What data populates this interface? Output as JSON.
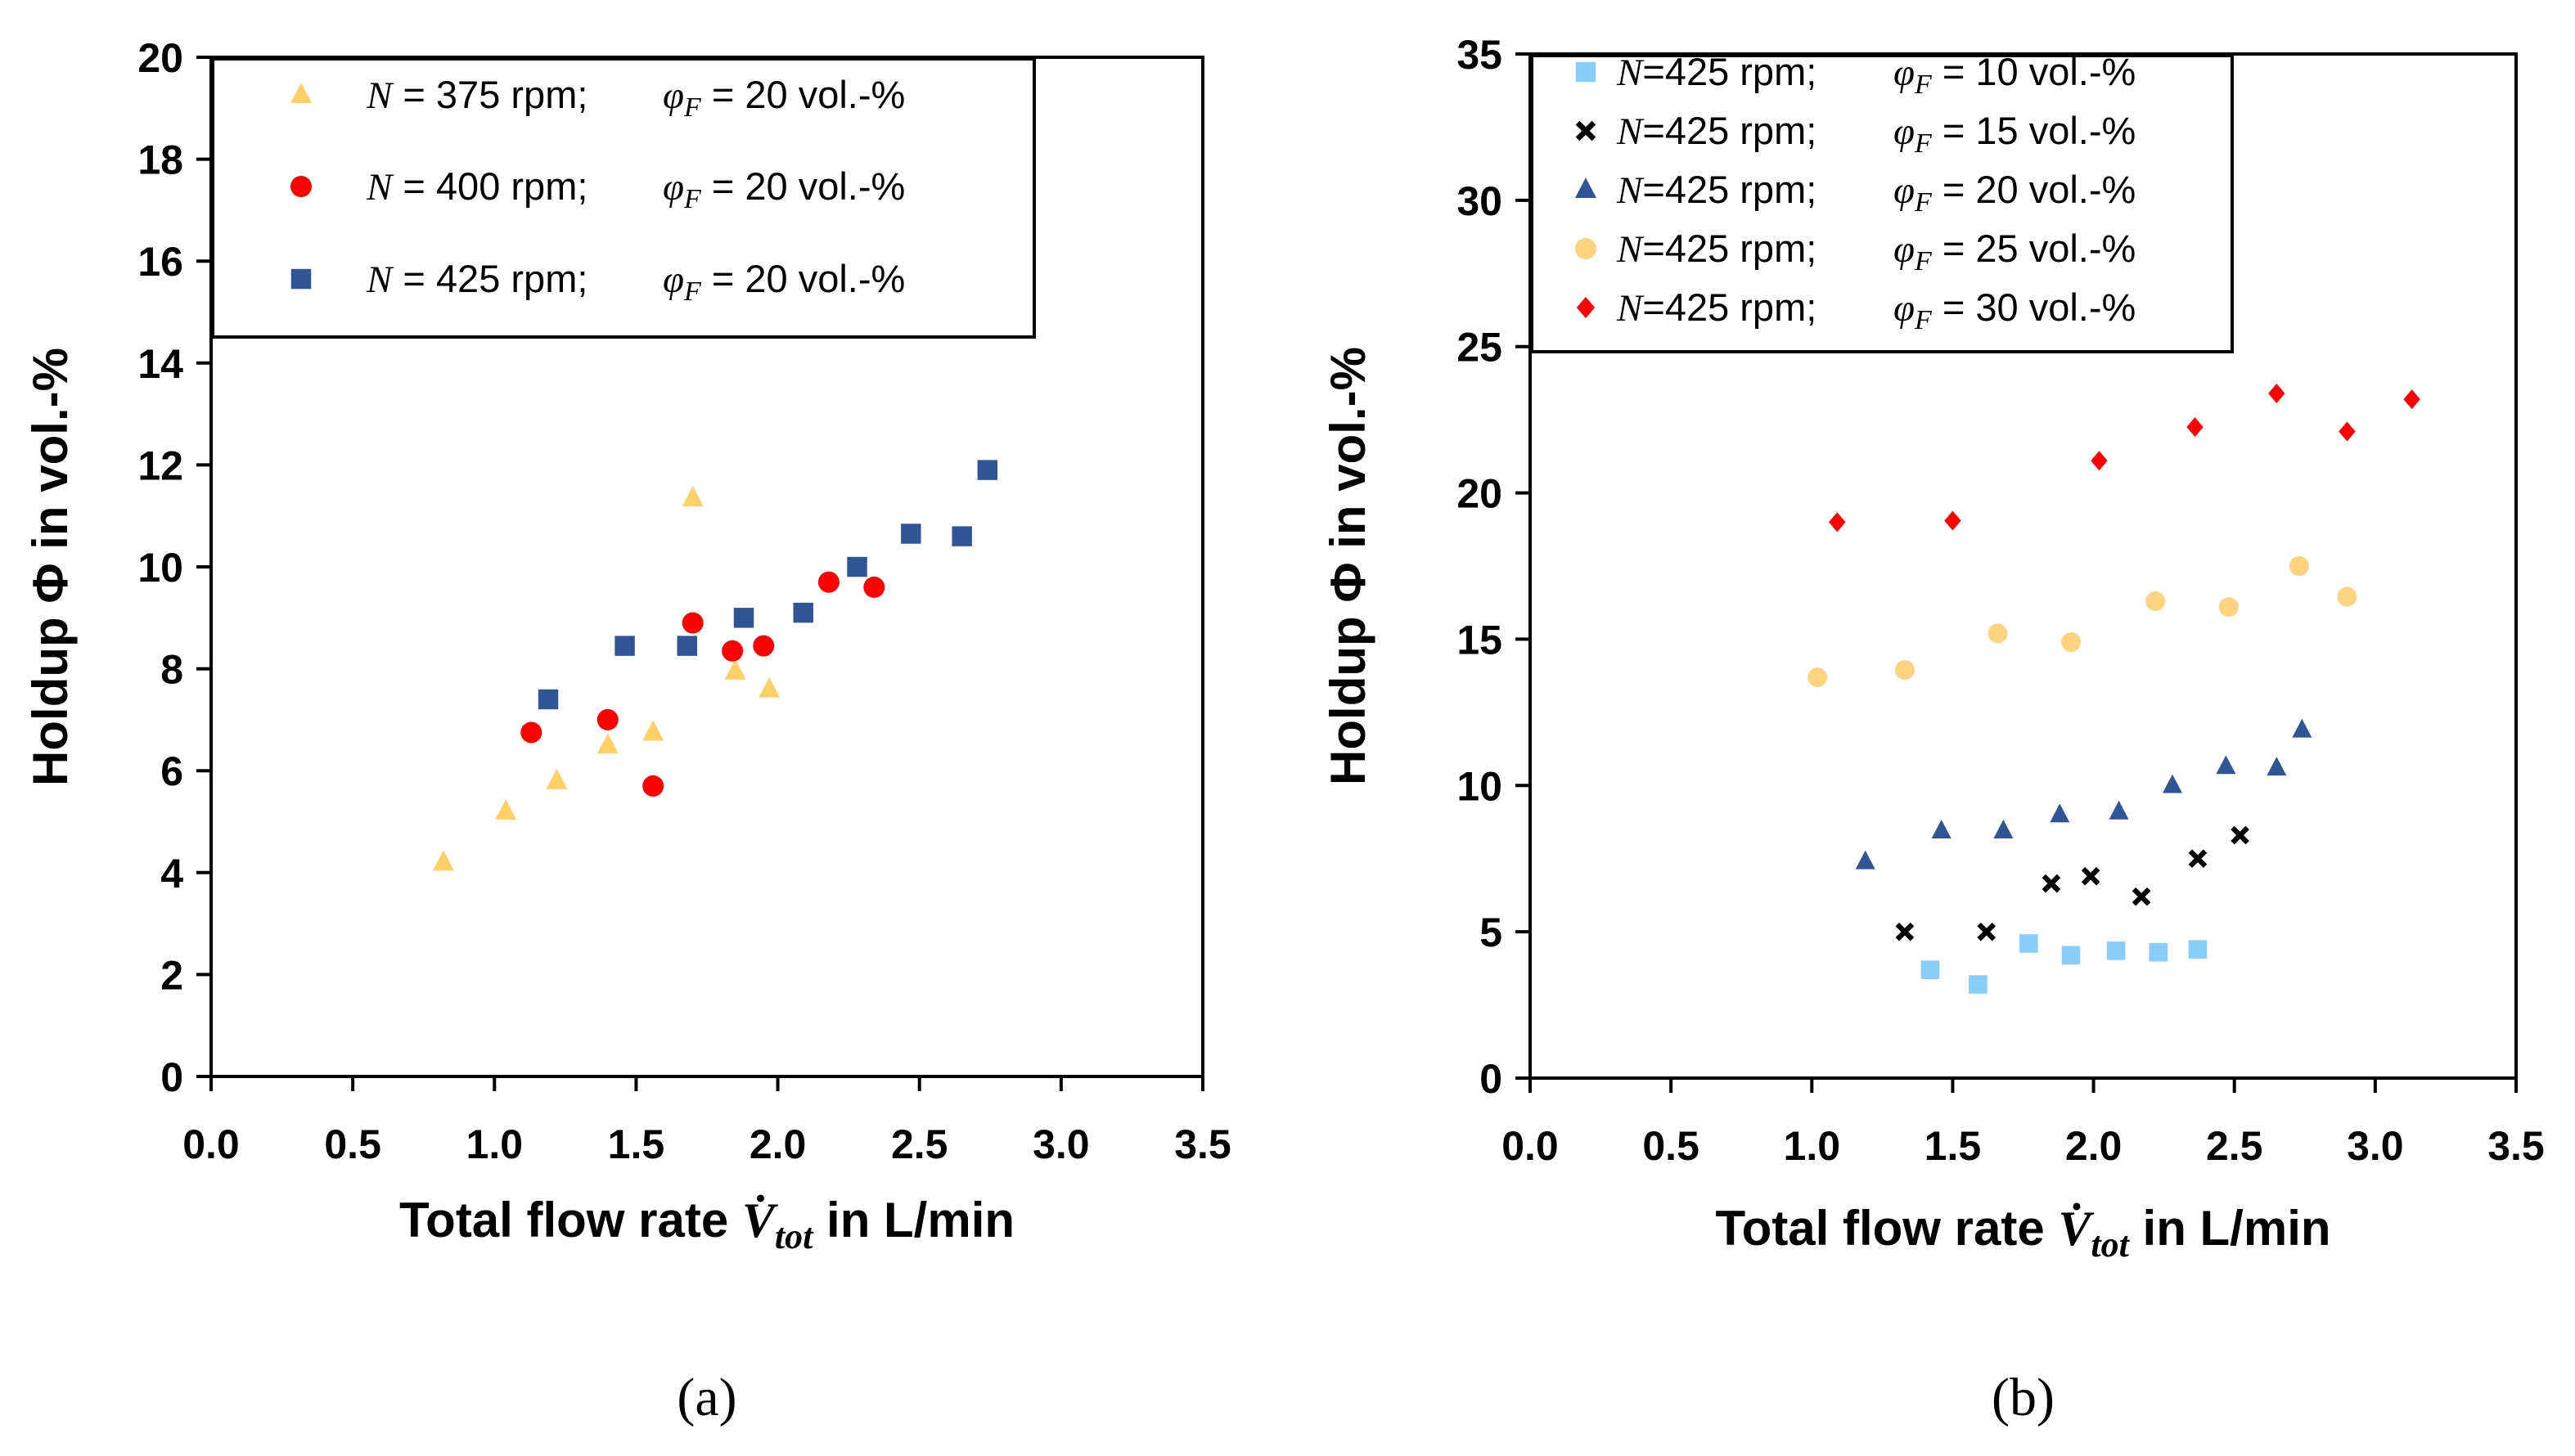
{
  "charts": [
    {
      "id": "a",
      "type": "scatter",
      "panel_label": "(a)",
      "ylabel": "Holdup Φ in vol.-%",
      "xlabel_prefix": "Total flow rate",
      "xlabel_symbol": "V̇",
      "xlabel_sub": "tot",
      "xlabel_suffix": "in L/min",
      "xlim": [
        0,
        3.5
      ],
      "ylim": [
        0,
        20
      ],
      "xticks": [
        "0.0",
        "0.5",
        "1.0",
        "1.5",
        "2.0",
        "2.5",
        "3.0",
        "3.5"
      ],
      "yticks": [
        "0",
        "2",
        "4",
        "6",
        "8",
        "10",
        "12",
        "14",
        "16",
        "18",
        "20"
      ],
      "legend": {
        "placement": "top-left",
        "entries": [
          {
            "n_symbol": "N",
            "n_text": " = 375 rpm;",
            "phi_symbol": "φ",
            "phi_sub": "F",
            "phi_text": " = 20 vol.-%"
          },
          {
            "n_symbol": "N",
            "n_text": " = 400 rpm;",
            "phi_symbol": "φ",
            "phi_sub": "F",
            "phi_text": " = 20 vol.-%"
          },
          {
            "n_symbol": "N",
            "n_text": " = 425 rpm;",
            "phi_symbol": "φ",
            "phi_sub": "F",
            "phi_text": " = 20 vol.-%"
          }
        ]
      },
      "series": [
        {
          "name": "N = 375 rpm; φF = 20 vol.-%",
          "marker": "triangle",
          "color": "#FFD066",
          "points": [
            [
              0.82,
              4.2
            ],
            [
              1.04,
              5.2
            ],
            [
              1.22,
              5.8
            ],
            [
              1.4,
              6.5
            ],
            [
              1.56,
              6.75
            ],
            [
              1.7,
              11.35
            ],
            [
              1.85,
              7.95
            ],
            [
              1.97,
              7.6
            ]
          ]
        },
        {
          "name": "N = 400 rpm; φF = 20 vol.-%",
          "marker": "circle",
          "color": "#FF0000",
          "points": [
            [
              1.13,
              6.75
            ],
            [
              1.4,
              7.0
            ],
            [
              1.56,
              5.7
            ],
            [
              1.7,
              8.9
            ],
            [
              1.84,
              8.35
            ],
            [
              1.95,
              8.45
            ],
            [
              2.18,
              9.7
            ],
            [
              2.34,
              9.6
            ]
          ]
        },
        {
          "name": "N = 425 rpm; φF = 20 vol.-%",
          "marker": "square",
          "color": "#2F5597",
          "points": [
            [
              1.19,
              7.4
            ],
            [
              1.46,
              8.45
            ],
            [
              1.68,
              8.45
            ],
            [
              1.88,
              9.0
            ],
            [
              2.09,
              9.1
            ],
            [
              2.28,
              10.0
            ],
            [
              2.47,
              10.65
            ],
            [
              2.65,
              10.6
            ],
            [
              2.74,
              11.9
            ]
          ]
        }
      ]
    },
    {
      "id": "b",
      "type": "scatter",
      "panel_label": "(b)",
      "ylabel": "Holdup Φ in vol.-%",
      "xlabel_prefix": "Total flow rate",
      "xlabel_symbol": "V̇",
      "xlabel_sub": "tot",
      "xlabel_suffix": "in L/min",
      "xlim": [
        0,
        3.5
      ],
      "ylim": [
        0,
        35
      ],
      "xticks": [
        "0.0",
        "0.5",
        "1.0",
        "1.5",
        "2.0",
        "2.5",
        "3.0",
        "3.5"
      ],
      "yticks": [
        "0",
        "5",
        "10",
        "15",
        "20",
        "25",
        "30",
        "35"
      ],
      "legend": {
        "placement": "top-left",
        "entries": [
          {
            "n_symbol": "N",
            "n_text": "=425 rpm;",
            "phi_symbol": "φ",
            "phi_sub": "F",
            "phi_text": " = 10 vol.-%"
          },
          {
            "n_symbol": "N",
            "n_text": "=425 rpm;",
            "phi_symbol": "φ",
            "phi_sub": "F",
            "phi_text": " = 15 vol.-%"
          },
          {
            "n_symbol": "N",
            "n_text": "=425 rpm;",
            "phi_symbol": "φ",
            "phi_sub": "F",
            "phi_text": " = 20 vol.-%"
          },
          {
            "n_symbol": "N",
            "n_text": "=425 rpm;",
            "phi_symbol": "φ",
            "phi_sub": "F",
            "phi_text": " = 25 vol.-%"
          },
          {
            "n_symbol": "N",
            "n_text": "=425 rpm;",
            "phi_symbol": "φ",
            "phi_sub": "F",
            "phi_text": " = 30 vol.-%"
          }
        ]
      },
      "series": [
        {
          "name": "N=425 rpm; φF = 10 vol.-%",
          "marker": "square",
          "color": "#87CEFA",
          "points": [
            [
              1.42,
              3.7
            ],
            [
              1.59,
              3.2
            ],
            [
              1.77,
              4.6
            ],
            [
              1.92,
              4.2
            ],
            [
              2.08,
              4.35
            ],
            [
              2.23,
              4.3
            ],
            [
              2.37,
              4.4
            ]
          ]
        },
        {
          "name": "N=425 rpm; φF = 15 vol.-%",
          "marker": "cross",
          "color": "#000000",
          "points": [
            [
              1.33,
              5.0
            ],
            [
              1.62,
              5.0
            ],
            [
              1.85,
              6.65
            ],
            [
              1.99,
              6.9
            ],
            [
              2.17,
              6.2
            ],
            [
              2.37,
              7.5
            ],
            [
              2.52,
              8.3
            ]
          ]
        },
        {
          "name": "N=425 rpm; φF = 20 vol.-%",
          "marker": "triangle",
          "color": "#2F5597",
          "points": [
            [
              1.19,
              7.4
            ],
            [
              1.46,
              8.45
            ],
            [
              1.68,
              8.45
            ],
            [
              1.88,
              9.0
            ],
            [
              2.09,
              9.1
            ],
            [
              2.28,
              10.0
            ],
            [
              2.47,
              10.65
            ],
            [
              2.65,
              10.6
            ],
            [
              2.74,
              11.9
            ]
          ]
        },
        {
          "name": "N=425 rpm; φF = 25 vol.-%",
          "marker": "circle",
          "color": "#FFD37F",
          "points": [
            [
              1.02,
              13.7
            ],
            [
              1.33,
              13.95
            ],
            [
              1.66,
              15.2
            ],
            [
              1.92,
              14.9
            ],
            [
              2.22,
              16.3
            ],
            [
              2.48,
              16.1
            ],
            [
              2.73,
              17.5
            ],
            [
              2.9,
              16.45
            ]
          ]
        },
        {
          "name": "N=425 rpm; φF = 30 vol.-%",
          "marker": "diamond",
          "color": "#FF0000",
          "points": [
            [
              1.09,
              19.0
            ],
            [
              1.5,
              19.05
            ],
            [
              2.02,
              21.1
            ],
            [
              2.36,
              22.25
            ],
            [
              2.65,
              23.4
            ],
            [
              2.9,
              22.1
            ],
            [
              3.13,
              23.2
            ]
          ]
        }
      ]
    }
  ]
}
